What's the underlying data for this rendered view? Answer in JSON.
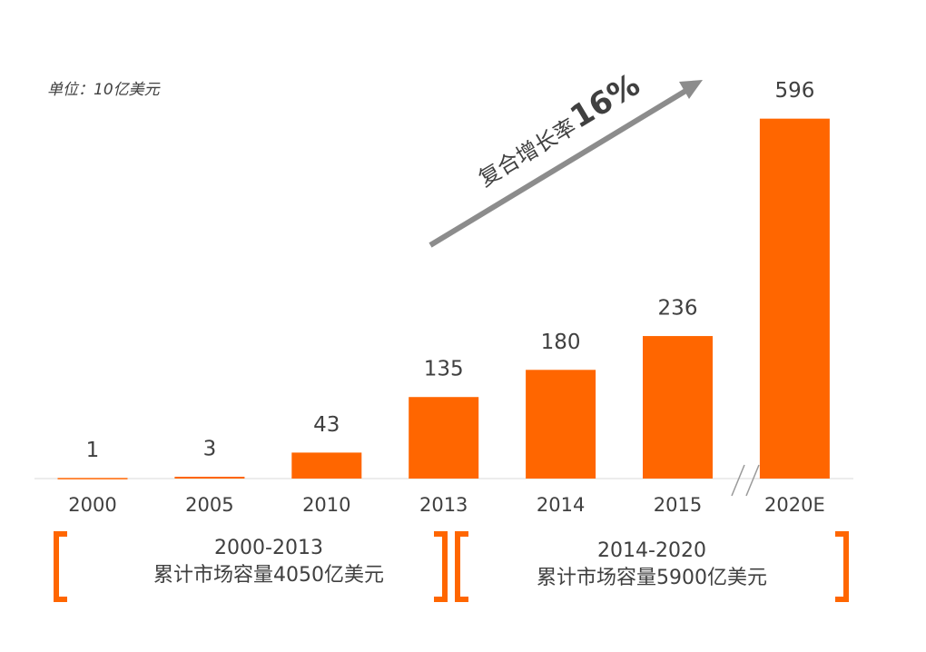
{
  "chart_data": {
    "type": "bar",
    "unit": "单位：10亿美元",
    "categories": [
      "2000",
      "2005",
      "2010",
      "2013",
      "2014",
      "2015",
      "2020E"
    ],
    "values": [
      1,
      3,
      43,
      135,
      180,
      236,
      596
    ],
    "color": "#ff6600",
    "ylim": [
      0,
      600
    ],
    "growth_label": "复合增长率",
    "growth_value": "16%",
    "periods": [
      {
        "range": "2000-2013",
        "total": "累计市场容量4050亿美元"
      },
      {
        "range": "2014-2020",
        "total": "累计市场容量5900亿美元"
      }
    ]
  }
}
